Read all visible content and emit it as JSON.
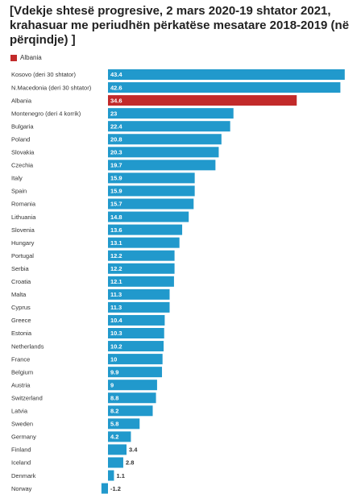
{
  "chart_data": {
    "type": "bar",
    "orientation": "horizontal",
    "title": "[Vdekje shtesë progresive, 2 mars 2020-19 shtator 2021, krahasuar me periudhën përkatëse mesatare 2018-2019 (në përqindje) ]",
    "legend": [
      {
        "name": "Albania",
        "color": "#c22a2a"
      }
    ],
    "default_color": "#2199cc",
    "highlight_color": "#c22a2a",
    "categories": [
      "Kosovo (deri 30 shtator)",
      "N.Macedonia (deri 30 shtator)",
      "Albania",
      "Montenegro (deri 4 korrik)",
      "Bulgaria",
      "Poland",
      "Slovakia",
      "Czechia",
      "Italy",
      "Spain",
      "Romania",
      "Lithuania",
      "Slovenia",
      "Hungary",
      "Portugal",
      "Serbia",
      "Croatia",
      "Malta",
      "Cyprus",
      "Greece",
      "Estonia",
      "Netherlands",
      "France",
      "Belgium",
      "Austria",
      "Switzerland",
      "Latvia",
      "Sweden",
      "Germany",
      "Finland",
      "Iceland",
      "Denmark",
      "Norway"
    ],
    "values": [
      43.4,
      42.6,
      34.6,
      23,
      22.4,
      20.8,
      20.3,
      19.7,
      15.9,
      15.9,
      15.7,
      14.8,
      13.6,
      13.1,
      12.2,
      12.2,
      12.1,
      11.3,
      11.3,
      10.4,
      10.3,
      10.2,
      10,
      9.9,
      9,
      8.8,
      8.2,
      5.8,
      4.2,
      3.4,
      2.8,
      1.1,
      -1.2
    ],
    "data_labels": [
      "43.4",
      "42.6",
      "34.6",
      "23",
      "22.4",
      "20.8",
      "20.3",
      "19.7",
      "15.9",
      "15.9",
      "15.7",
      "14.8",
      "13.6",
      "13.1",
      "12.2",
      "12.2",
      "12.1",
      "11.3",
      "11.3",
      "10.4",
      "10.3",
      "10.2",
      "10",
      "9.9",
      "9",
      "8.8",
      "8.2",
      "5.8",
      "4.2",
      "3.4",
      "2.8",
      "1.1",
      "-1.2"
    ],
    "highlight": [
      "Albania"
    ],
    "xlim": [
      -1.2,
      43.4
    ]
  }
}
